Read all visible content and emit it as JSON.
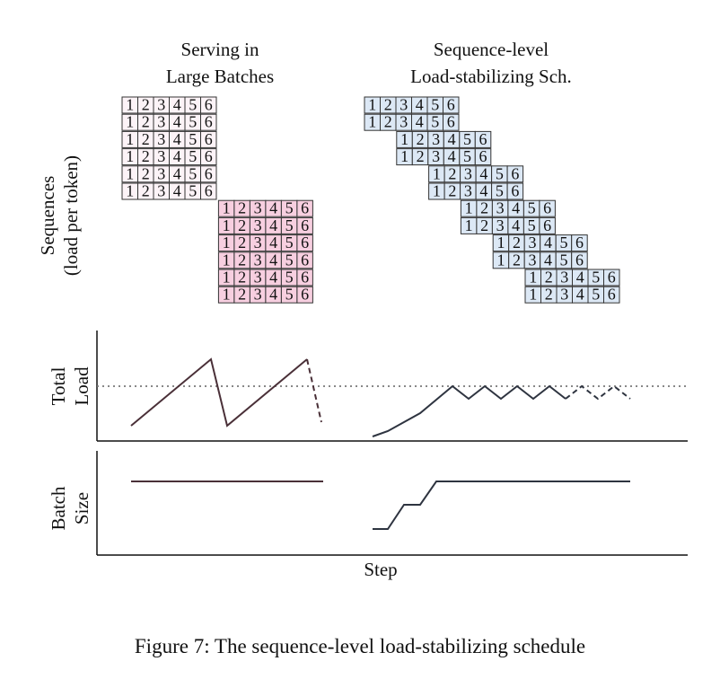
{
  "headers": {
    "left_line1": "Serving in",
    "left_line2": "Large Batches",
    "right_line1": "Sequence-level",
    "right_line2": "Load-stabilizing Sch."
  },
  "axis_labels": {
    "sequences_line1": "Sequences",
    "sequences_line2": "(load per token)",
    "load_line1": "Total",
    "load_line2": "Load",
    "batch_line1": "Batch",
    "batch_line2": "Size",
    "step": "Step"
  },
  "caption": "Figure 7: The sequence-level load-stabilizing schedule",
  "token_labels": [
    "1",
    "2",
    "3",
    "4",
    "5",
    "6"
  ],
  "colors": {
    "left_group_a_fill": "#fcf3f7",
    "left_group_b_fill": "#f7cfe0",
    "right_fill": "#dce8f5",
    "left_curve": "#4a3038",
    "right_curve": "#2e3440",
    "cell_border": "#333333"
  },
  "left_schedule": {
    "start_steps": [
      0,
      0,
      0,
      0,
      0,
      0,
      6,
      6,
      6,
      6,
      6,
      6
    ],
    "group_b_from_row": 6
  },
  "right_schedule": {
    "start_steps": [
      0,
      0,
      2,
      2,
      4,
      4,
      6,
      6,
      8,
      8,
      10,
      10
    ]
  }
}
